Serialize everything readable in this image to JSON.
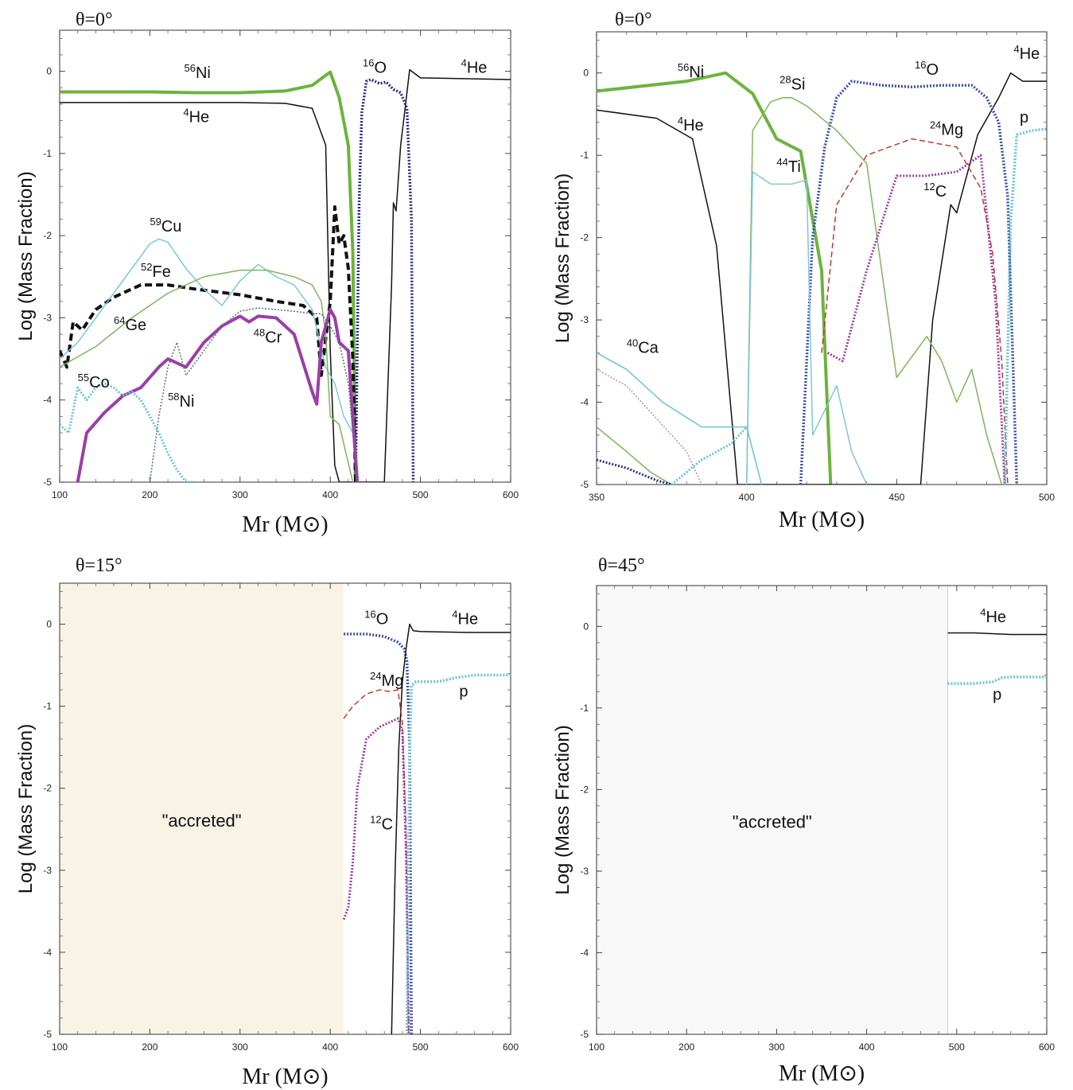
{
  "chart_data": [
    {
      "type": "line",
      "title": "θ=0°",
      "xlabel": "Mr (M⊙)",
      "ylabel": "Log (Mass Fraction)",
      "xlim": [
        100,
        600
      ],
      "ylim": [
        -5,
        0.5
      ],
      "xticks": [
        "100",
        "200",
        "300",
        "400",
        "500",
        "600"
      ],
      "yticks": [
        "-5",
        "-4",
        "-3",
        "-2",
        "-1",
        "0"
      ],
      "series": [
        {
          "name": "56Ni",
          "color": "#6db33f",
          "style": "solid",
          "width": 4,
          "x": [
            100,
            150,
            200,
            250,
            300,
            350,
            380,
            395,
            400,
            410,
            420,
            425,
            428
          ],
          "y": [
            -0.25,
            -0.25,
            -0.25,
            -0.26,
            -0.26,
            -0.24,
            -0.17,
            -0.05,
            -0.01,
            -0.32,
            -0.9,
            -2.2,
            -5
          ]
        },
        {
          "name": "4He",
          "color": "#111111",
          "style": "solid",
          "width": 1.5,
          "x": [
            100,
            200,
            300,
            350,
            380,
            395,
            400,
            405,
            410,
            430,
            460,
            468,
            470,
            473,
            478,
            483,
            488,
            500,
            550,
            600
          ],
          "y": [
            -0.38,
            -0.38,
            -0.38,
            -0.39,
            -0.45,
            -0.9,
            -3.4,
            -4.8,
            -5,
            -5,
            -5,
            -2.6,
            -1.6,
            -1.7,
            -0.9,
            -0.45,
            0.02,
            -0.08,
            -0.09,
            -0.1
          ]
        },
        {
          "name": "16O",
          "color": "#2b2b8c",
          "style": "dotted",
          "width": 3.5,
          "x": [
            428,
            432,
            435,
            440,
            445,
            455,
            462,
            470,
            478,
            485,
            490,
            492
          ],
          "y": [
            -5,
            -1.6,
            -0.5,
            -0.12,
            -0.1,
            -0.15,
            -0.13,
            -0.22,
            -0.26,
            -0.45,
            -1.8,
            -5
          ]
        },
        {
          "name": "52Fe",
          "color": "#111111",
          "style": "dashed",
          "width": 4,
          "x": [
            100,
            108,
            115,
            125,
            140,
            160,
            190,
            220,
            250,
            300,
            340,
            370,
            385,
            390,
            400,
            405,
            410,
            415,
            420,
            425,
            428
          ],
          "y": [
            -3.4,
            -3.6,
            -3.05,
            -3.15,
            -2.9,
            -2.75,
            -2.6,
            -2.6,
            -2.65,
            -2.72,
            -2.8,
            -2.85,
            -3.0,
            -3.7,
            -2.8,
            -1.65,
            -2.1,
            -2.0,
            -2.4,
            -3.5,
            -5
          ]
        },
        {
          "name": "59Cu",
          "color": "#7ec8d8",
          "style": "solid",
          "width": 1.5,
          "x": [
            100,
            120,
            140,
            160,
            180,
            200,
            210,
            220,
            240,
            260,
            280,
            300,
            320,
            340,
            360,
            380,
            395,
            405,
            415,
            425
          ],
          "y": [
            -3.5,
            -3.3,
            -3.0,
            -2.7,
            -2.4,
            -2.1,
            -2.04,
            -2.08,
            -2.4,
            -2.65,
            -2.85,
            -2.55,
            -2.35,
            -2.5,
            -2.6,
            -2.9,
            -3.6,
            -3.8,
            -4.2,
            -4.4
          ]
        },
        {
          "name": "64Ge",
          "color": "#7fb55a",
          "style": "solid",
          "width": 1.5,
          "x": [
            100,
            140,
            180,
            220,
            260,
            300,
            330,
            360,
            380,
            390,
            395,
            400,
            410,
            425
          ],
          "y": [
            -3.6,
            -3.35,
            -3.0,
            -2.7,
            -2.5,
            -2.42,
            -2.42,
            -2.5,
            -2.6,
            -2.8,
            -3.2,
            -4.2,
            -4.3,
            -5
          ]
        },
        {
          "name": "48Cr",
          "color": "#9b3fa6",
          "style": "solid",
          "width": 4,
          "x": [
            120,
            130,
            150,
            170,
            190,
            210,
            220,
            240,
            260,
            280,
            300,
            310,
            320,
            340,
            360,
            380,
            385,
            390,
            400,
            405,
            410,
            420,
            430
          ],
          "y": [
            -5,
            -4.4,
            -4.15,
            -3.95,
            -3.85,
            -3.6,
            -3.5,
            -3.6,
            -3.3,
            -3.1,
            -2.98,
            -3.05,
            -2.98,
            -3.0,
            -3.2,
            -3.9,
            -4.05,
            -3.3,
            -2.9,
            -3.0,
            -3.3,
            -3.4,
            -5
          ]
        },
        {
          "name": "55Co",
          "color": "#6ac3d5",
          "style": "dotted",
          "width": 3,
          "x": [
            100,
            110,
            120,
            130,
            140,
            150,
            160,
            170,
            180,
            190,
            200,
            210,
            220,
            230,
            240,
            250
          ],
          "y": [
            -4.3,
            -4.4,
            -3.85,
            -4.0,
            -3.85,
            -3.8,
            -3.85,
            -3.95,
            -3.9,
            -4.0,
            -4.2,
            -4.4,
            -4.65,
            -4.85,
            -5,
            -5
          ]
        },
        {
          "name": "58Ni",
          "color": "#5a6a7a",
          "style": "dotted",
          "width": 1.5,
          "x": [
            200,
            210,
            220,
            230,
            240,
            260,
            280,
            300,
            320,
            340,
            360,
            380,
            390,
            400,
            410,
            420,
            430
          ],
          "y": [
            -5,
            -4.2,
            -3.6,
            -3.3,
            -3.7,
            -3.4,
            -3.1,
            -2.92,
            -2.88,
            -2.9,
            -2.92,
            -2.95,
            -2.95,
            -3.1,
            -3.3,
            -3.8,
            -5
          ]
        }
      ],
      "labels": [
        "56Ni",
        "4He",
        "16O",
        "4He",
        "59Cu",
        "52Fe",
        "64Ge",
        "48Cr",
        "55Co",
        "58Ni"
      ]
    },
    {
      "type": "line",
      "title": "θ=0°",
      "xlabel": "Mr (M⊙)",
      "ylabel": "Log (Mass Fraction)",
      "xlim": [
        350,
        500
      ],
      "ylim": [
        -5,
        0.5
      ],
      "xticks": [
        "350",
        "400",
        "450",
        "500"
      ],
      "yticks": [
        "-5",
        "-4",
        "-3",
        "-2",
        "-1",
        "0"
      ],
      "series": [
        {
          "name": "56Ni",
          "color": "#6db33f",
          "style": "solid",
          "width": 4,
          "x": [
            350,
            380,
            393,
            402,
            410,
            418,
            425,
            428
          ],
          "y": [
            -0.22,
            -0.1,
            0,
            -0.25,
            -0.8,
            -0.95,
            -2.4,
            -5
          ]
        },
        {
          "name": "4He",
          "color": "#111111",
          "style": "solid",
          "width": 1.5,
          "x": [
            350,
            370,
            382,
            390,
            397,
            400,
            458,
            462,
            468,
            470,
            477,
            484,
            488,
            492,
            500
          ],
          "y": [
            -0.45,
            -0.55,
            -0.8,
            -2.1,
            -5,
            -5,
            -5,
            -3.0,
            -1.6,
            -1.7,
            -0.75,
            -0.3,
            0,
            -0.1,
            -0.1
          ]
        },
        {
          "name": "16O",
          "color": "#3a4fa8",
          "style": "dotted",
          "width": 3.5,
          "x": [
            418,
            422,
            426,
            430,
            435,
            445,
            455,
            465,
            475,
            480,
            484,
            487,
            490
          ],
          "y": [
            -5,
            -2.0,
            -0.9,
            -0.3,
            -0.1,
            -0.15,
            -0.17,
            -0.15,
            -0.15,
            -0.3,
            -0.6,
            -1.5,
            -5
          ]
        },
        {
          "name": "28Si",
          "color": "#7fb55a",
          "style": "solid",
          "width": 1.5,
          "x": [
            400,
            402,
            408,
            412,
            415,
            420,
            425,
            430,
            440,
            450,
            460,
            465,
            470,
            475,
            480,
            485
          ],
          "y": [
            -5,
            -0.7,
            -0.35,
            -0.3,
            -0.3,
            -0.4,
            -0.55,
            -0.7,
            -1.1,
            -3.7,
            -3.2,
            -3.5,
            -4.0,
            -3.6,
            -4.4,
            -5
          ]
        },
        {
          "name": "44Ti",
          "color": "#7ec8d8",
          "style": "solid",
          "width": 1.5,
          "x": [
            400,
            402,
            408,
            415,
            420,
            422,
            430,
            435,
            440
          ],
          "y": [
            -5,
            -1.2,
            -1.35,
            -1.35,
            -1.3,
            -4.4,
            -3.8,
            -4.6,
            -5
          ]
        },
        {
          "name": "24Mg",
          "color": "#c0392b",
          "style": "dashed",
          "width": 1.5,
          "x": [
            425,
            430,
            440,
            455,
            470,
            478,
            482,
            485,
            487
          ],
          "y": [
            -3.4,
            -1.6,
            -1.0,
            -0.8,
            -0.9,
            -1.4,
            -2.2,
            -3.5,
            -5
          ]
        },
        {
          "name": "12C",
          "color": "#9b3fa6",
          "style": "dotted",
          "width": 3,
          "x": [
            427,
            432,
            440,
            450,
            460,
            470,
            478,
            483,
            486
          ],
          "y": [
            -3.4,
            -3.5,
            -2.4,
            -1.25,
            -1.25,
            -1.2,
            -1.0,
            -2.8,
            -5
          ]
        },
        {
          "name": "p",
          "color": "#6ac3d5",
          "style": "dotted",
          "width": 3.5,
          "x": [
            486,
            488,
            490,
            495,
            500
          ],
          "y": [
            -5,
            -1.8,
            -0.75,
            -0.7,
            -0.68
          ]
        },
        {
          "name": "40Ca",
          "color": "#6ac3d5",
          "style": "solid",
          "width": 1.5,
          "x": [
            350,
            360,
            372,
            385,
            400,
            405
          ],
          "y": [
            -3.4,
            -3.6,
            -4.0,
            -4.3,
            -4.3,
            -5
          ]
        },
        {
          "name": "",
          "color": "#c08aa8",
          "style": "dotted",
          "width": 1.5,
          "x": [
            350,
            360,
            370,
            380,
            385
          ],
          "y": [
            -3.6,
            -3.8,
            -4.2,
            -4.6,
            -5
          ]
        },
        {
          "name": "",
          "color": "#7fb55a",
          "style": "solid",
          "width": 1.5,
          "x": [
            350,
            360,
            368,
            375
          ],
          "y": [
            -4.3,
            -4.6,
            -4.85,
            -5
          ]
        },
        {
          "name": "",
          "color": "#2b2b8c",
          "style": "dotted",
          "width": 3,
          "x": [
            350,
            360,
            370,
            375
          ],
          "y": [
            -4.7,
            -4.8,
            -4.95,
            -5
          ]
        },
        {
          "name": "",
          "color": "#6ac3d5",
          "style": "dotted",
          "width": 3,
          "x": [
            375,
            385,
            395,
            400
          ],
          "y": [
            -5,
            -4.7,
            -4.5,
            -4.3
          ]
        }
      ],
      "labels": [
        "56Ni",
        "4He",
        "28Si",
        "16O",
        "4He",
        "24Mg",
        "p",
        "44Ti",
        "12C",
        "40Ca"
      ]
    },
    {
      "type": "line",
      "title": "θ=15°",
      "xlabel": "Mr (M⊙)",
      "ylabel": "Log (Mass Fraction)",
      "xlim": [
        100,
        600
      ],
      "ylim": [
        -5,
        0.5
      ],
      "xticks": [
        "100",
        "200",
        "300",
        "400",
        "500",
        "600"
      ],
      "yticks": [
        "-5",
        "-4",
        "-3",
        "-2",
        "-1",
        "0"
      ],
      "shaded_region": {
        "x": [
          100,
          415
        ],
        "color": "#f7f4e6",
        "label": "\"accreted\""
      },
      "series": [
        {
          "name": "16O",
          "color": "#3a4fa8",
          "style": "dotted",
          "width": 3.5,
          "x": [
            415,
            440,
            460,
            475,
            482,
            485,
            488,
            490
          ],
          "y": [
            -0.12,
            -0.12,
            -0.15,
            -0.22,
            -0.3,
            -0.45,
            -1.5,
            -5
          ]
        },
        {
          "name": "4He",
          "color": "#111111",
          "style": "solid",
          "width": 1.5,
          "x": [
            468,
            472,
            476,
            480,
            484,
            488,
            492,
            500,
            550,
            600
          ],
          "y": [
            -5,
            -3.0,
            -1.5,
            -0.7,
            -0.3,
            0,
            -0.08,
            -0.09,
            -0.1,
            -0.1
          ]
        },
        {
          "name": "24Mg",
          "color": "#c0392b",
          "style": "dashed",
          "width": 1.5,
          "x": [
            415,
            425,
            440,
            455,
            465,
            475,
            480,
            484,
            487
          ],
          "y": [
            -1.15,
            -1.0,
            -0.85,
            -0.8,
            -0.82,
            -0.8,
            -1.2,
            -2.5,
            -5
          ]
        },
        {
          "name": "12C",
          "color": "#9b3fa6",
          "style": "dotted",
          "width": 3,
          "x": [
            415,
            420,
            425,
            430,
            440,
            455,
            465,
            475,
            480,
            484,
            487
          ],
          "y": [
            -3.6,
            -3.45,
            -2.9,
            -2.0,
            -1.4,
            -1.25,
            -1.2,
            -1.15,
            -1.3,
            -2.8,
            -5
          ]
        },
        {
          "name": "p",
          "color": "#6ac3d5",
          "style": "dotted",
          "width": 3.5,
          "x": [
            485,
            488,
            490,
            495,
            520,
            540,
            560,
            600
          ],
          "y": [
            -5,
            -1.5,
            -0.75,
            -0.7,
            -0.7,
            -0.65,
            -0.62,
            -0.62
          ]
        }
      ],
      "labels": [
        "16O",
        "4He",
        "24Mg",
        "p",
        "12C"
      ]
    },
    {
      "type": "line",
      "title": "θ=45°",
      "xlabel": "Mr (M⊙)",
      "ylabel": "Log (Mass Fraction)",
      "xlim": [
        100,
        600
      ],
      "ylim": [
        -5,
        0.5
      ],
      "xticks": [
        "100",
        "200",
        "300",
        "400",
        "500",
        "600"
      ],
      "yticks": [
        "-5",
        "-4",
        "-3",
        "-2",
        "-1",
        "0"
      ],
      "shaded_region": {
        "x": [
          100,
          490
        ],
        "color": "#f8f8f8",
        "label": "\"accreted\""
      },
      "series": [
        {
          "name": "4He",
          "color": "#111111",
          "style": "solid",
          "width": 1.5,
          "x": [
            490,
            520,
            560,
            600
          ],
          "y": [
            -0.08,
            -0.08,
            -0.1,
            -0.1
          ]
        },
        {
          "name": "p",
          "color": "#6ac3d5",
          "style": "dotted",
          "width": 3.5,
          "x": [
            490,
            520,
            540,
            550,
            560,
            600
          ],
          "y": [
            -0.7,
            -0.7,
            -0.68,
            -0.63,
            -0.62,
            -0.62
          ]
        }
      ],
      "labels": [
        "4He",
        "p"
      ]
    }
  ]
}
